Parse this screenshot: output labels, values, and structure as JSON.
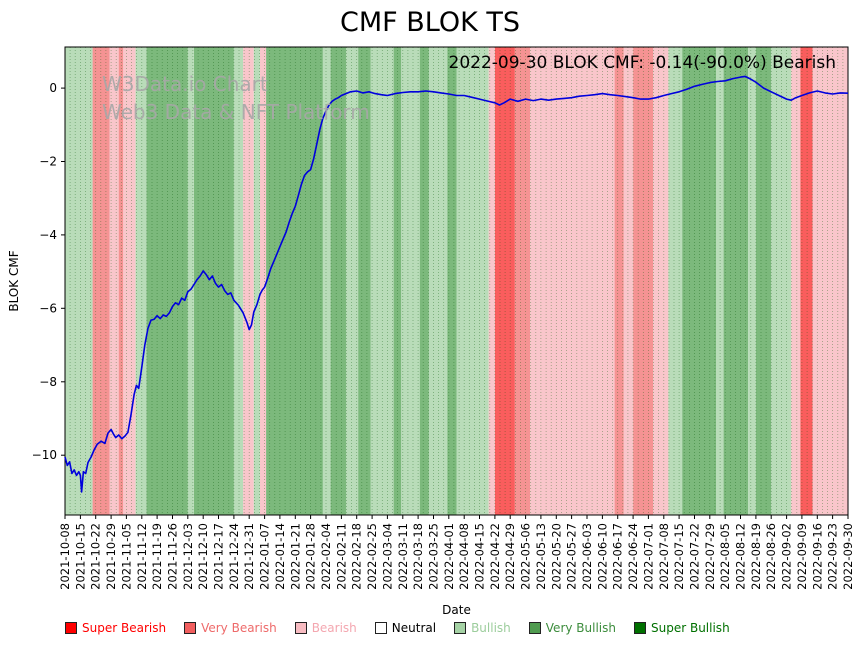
{
  "title": "CMF BLOK TS",
  "watermark": {
    "line1": "W3Data.io Chart",
    "line2": "Web3 Data & NFT Platform"
  },
  "annotation": "2022-09-30 BLOK CMF: -0.14(-90.0%) Bearish",
  "chart_data": {
    "type": "line",
    "title": "CMF BLOK TS",
    "xlabel": "Date",
    "ylabel": "BLOK CMF",
    "ylim": [
      -11.63,
      1.12
    ],
    "y_ticks": [
      0,
      -2,
      -4,
      -6,
      -8,
      -10
    ],
    "grid": "vertical-dotted",
    "legend_position": "bottom",
    "x_tick_labels": [
      "2021-10-08",
      "2021-10-15",
      "2021-10-22",
      "2021-10-29",
      "2021-11-05",
      "2021-11-12",
      "2021-11-19",
      "2021-11-26",
      "2021-12-03",
      "2021-12-10",
      "2021-12-17",
      "2021-12-24",
      "2021-12-31",
      "2022-01-07",
      "2022-01-14",
      "2022-01-21",
      "2022-01-28",
      "2022-02-04",
      "2022-02-11",
      "2022-02-18",
      "2022-02-25",
      "2022-03-04",
      "2022-03-11",
      "2022-03-18",
      "2022-03-25",
      "2022-04-01",
      "2022-04-08",
      "2022-04-15",
      "2022-04-22",
      "2022-04-29",
      "2022-05-06",
      "2022-05-13",
      "2022-05-20",
      "2022-05-27",
      "2022-06-03",
      "2022-06-10",
      "2022-06-17",
      "2022-06-24",
      "2022-07-01",
      "2022-07-08",
      "2022-07-15",
      "2022-07-22",
      "2022-07-29",
      "2022-08-05",
      "2022-08-12",
      "2022-08-19",
      "2022-08-26",
      "2022-09-02",
      "2022-09-09",
      "2022-09-16",
      "2022-09-23",
      "2022-09-30"
    ],
    "series": [
      {
        "name": "BLOK CMF",
        "color": "#0000dd",
        "points": [
          [
            0,
            -10.05
          ],
          [
            0.15,
            -10.28
          ],
          [
            0.3,
            -10.18
          ],
          [
            0.45,
            -10.5
          ],
          [
            0.6,
            -10.4
          ],
          [
            0.75,
            -10.55
          ],
          [
            0.9,
            -10.45
          ],
          [
            1.0,
            -10.55
          ],
          [
            1.08,
            -11.0
          ],
          [
            1.2,
            -10.45
          ],
          [
            1.35,
            -10.5
          ],
          [
            1.5,
            -10.2
          ],
          [
            1.7,
            -10.05
          ],
          [
            1.9,
            -9.85
          ],
          [
            2.1,
            -9.7
          ],
          [
            2.35,
            -9.62
          ],
          [
            2.6,
            -9.68
          ],
          [
            2.8,
            -9.4
          ],
          [
            3.0,
            -9.3
          ],
          [
            3.15,
            -9.42
          ],
          [
            3.3,
            -9.52
          ],
          [
            3.5,
            -9.45
          ],
          [
            3.7,
            -9.55
          ],
          [
            3.9,
            -9.48
          ],
          [
            4.1,
            -9.38
          ],
          [
            4.3,
            -8.9
          ],
          [
            4.5,
            -8.35
          ],
          [
            4.65,
            -8.1
          ],
          [
            4.8,
            -8.18
          ],
          [
            5.0,
            -7.6
          ],
          [
            5.2,
            -7.0
          ],
          [
            5.4,
            -6.55
          ],
          [
            5.6,
            -6.32
          ],
          [
            5.8,
            -6.3
          ],
          [
            6.0,
            -6.2
          ],
          [
            6.2,
            -6.28
          ],
          [
            6.4,
            -6.18
          ],
          [
            6.6,
            -6.22
          ],
          [
            6.8,
            -6.12
          ],
          [
            7.0,
            -5.95
          ],
          [
            7.2,
            -5.85
          ],
          [
            7.4,
            -5.9
          ],
          [
            7.6,
            -5.72
          ],
          [
            7.8,
            -5.78
          ],
          [
            8.0,
            -5.55
          ],
          [
            8.2,
            -5.48
          ],
          [
            8.4,
            -5.35
          ],
          [
            8.6,
            -5.22
          ],
          [
            8.8,
            -5.12
          ],
          [
            9.0,
            -4.98
          ],
          [
            9.2,
            -5.08
          ],
          [
            9.4,
            -5.22
          ],
          [
            9.6,
            -5.12
          ],
          [
            9.8,
            -5.32
          ],
          [
            10.0,
            -5.42
          ],
          [
            10.2,
            -5.35
          ],
          [
            10.4,
            -5.52
          ],
          [
            10.6,
            -5.62
          ],
          [
            10.8,
            -5.58
          ],
          [
            11.0,
            -5.78
          ],
          [
            11.3,
            -5.92
          ],
          [
            11.6,
            -6.12
          ],
          [
            11.85,
            -6.38
          ],
          [
            12.0,
            -6.58
          ],
          [
            12.15,
            -6.45
          ],
          [
            12.3,
            -6.1
          ],
          [
            12.5,
            -5.9
          ],
          [
            12.7,
            -5.62
          ],
          [
            12.85,
            -5.5
          ],
          [
            13.0,
            -5.42
          ],
          [
            13.2,
            -5.18
          ],
          [
            13.4,
            -4.92
          ],
          [
            13.6,
            -4.72
          ],
          [
            13.8,
            -4.52
          ],
          [
            14.0,
            -4.32
          ],
          [
            14.2,
            -4.12
          ],
          [
            14.4,
            -3.92
          ],
          [
            14.6,
            -3.65
          ],
          [
            14.8,
            -3.42
          ],
          [
            15.0,
            -3.22
          ],
          [
            15.2,
            -2.92
          ],
          [
            15.4,
            -2.62
          ],
          [
            15.6,
            -2.38
          ],
          [
            15.8,
            -2.28
          ],
          [
            16.0,
            -2.22
          ],
          [
            16.2,
            -1.92
          ],
          [
            16.4,
            -1.52
          ],
          [
            16.6,
            -1.12
          ],
          [
            16.8,
            -0.82
          ],
          [
            17.0,
            -0.62
          ],
          [
            17.2,
            -0.46
          ],
          [
            17.4,
            -0.36
          ],
          [
            17.6,
            -0.3
          ],
          [
            17.8,
            -0.26
          ],
          [
            18.0,
            -0.2
          ],
          [
            18.3,
            -0.15
          ],
          [
            18.6,
            -0.1
          ],
          [
            19.0,
            -0.08
          ],
          [
            19.4,
            -0.13
          ],
          [
            19.8,
            -0.1
          ],
          [
            20.2,
            -0.15
          ],
          [
            20.6,
            -0.18
          ],
          [
            21.0,
            -0.2
          ],
          [
            21.5,
            -0.15
          ],
          [
            22.0,
            -0.12
          ],
          [
            22.5,
            -0.1
          ],
          [
            23.0,
            -0.1
          ],
          [
            23.5,
            -0.08
          ],
          [
            24.0,
            -0.1
          ],
          [
            24.5,
            -0.13
          ],
          [
            25.0,
            -0.16
          ],
          [
            25.5,
            -0.2
          ],
          [
            26.0,
            -0.2
          ],
          [
            26.5,
            -0.25
          ],
          [
            27.0,
            -0.3
          ],
          [
            27.5,
            -0.35
          ],
          [
            28.0,
            -0.4
          ],
          [
            28.3,
            -0.46
          ],
          [
            28.6,
            -0.4
          ],
          [
            29.0,
            -0.3
          ],
          [
            29.5,
            -0.36
          ],
          [
            30.0,
            -0.3
          ],
          [
            30.5,
            -0.34
          ],
          [
            31.0,
            -0.3
          ],
          [
            31.5,
            -0.33
          ],
          [
            32.0,
            -0.3
          ],
          [
            32.5,
            -0.28
          ],
          [
            33.0,
            -0.26
          ],
          [
            33.5,
            -0.22
          ],
          [
            34.0,
            -0.2
          ],
          [
            34.5,
            -0.18
          ],
          [
            35.0,
            -0.15
          ],
          [
            35.5,
            -0.18
          ],
          [
            36.0,
            -0.2
          ],
          [
            36.5,
            -0.23
          ],
          [
            37.0,
            -0.26
          ],
          [
            37.5,
            -0.3
          ],
          [
            38.0,
            -0.3
          ],
          [
            38.5,
            -0.26
          ],
          [
            39.0,
            -0.2
          ],
          [
            39.5,
            -0.15
          ],
          [
            40.0,
            -0.1
          ],
          [
            40.5,
            -0.03
          ],
          [
            41.0,
            0.05
          ],
          [
            41.5,
            0.1
          ],
          [
            42.0,
            0.15
          ],
          [
            42.5,
            0.18
          ],
          [
            43.0,
            0.2
          ],
          [
            43.5,
            0.26
          ],
          [
            44.0,
            0.3
          ],
          [
            44.3,
            0.32
          ],
          [
            44.6,
            0.26
          ],
          [
            45.0,
            0.16
          ],
          [
            45.5,
            0.0
          ],
          [
            46.0,
            -0.1
          ],
          [
            46.5,
            -0.2
          ],
          [
            47.0,
            -0.3
          ],
          [
            47.3,
            -0.33
          ],
          [
            47.6,
            -0.26
          ],
          [
            48.0,
            -0.2
          ],
          [
            48.5,
            -0.13
          ],
          [
            49.0,
            -0.08
          ],
          [
            49.5,
            -0.13
          ],
          [
            50.0,
            -0.16
          ],
          [
            50.5,
            -0.13
          ],
          [
            51.0,
            -0.14
          ]
        ]
      }
    ],
    "bands": [
      {
        "start": 0,
        "end": 1.8,
        "level": "bullish"
      },
      {
        "start": 1.8,
        "end": 2.9,
        "level": "very_bearish"
      },
      {
        "start": 2.9,
        "end": 3.5,
        "level": "bearish"
      },
      {
        "start": 3.5,
        "end": 3.8,
        "level": "very_bearish"
      },
      {
        "start": 3.8,
        "end": 4.6,
        "level": "bearish"
      },
      {
        "start": 4.6,
        "end": 5.3,
        "level": "bullish"
      },
      {
        "start": 5.3,
        "end": 8.0,
        "level": "very_bullish"
      },
      {
        "start": 8.0,
        "end": 8.4,
        "level": "bullish"
      },
      {
        "start": 8.4,
        "end": 11.0,
        "level": "very_bullish"
      },
      {
        "start": 11.0,
        "end": 11.6,
        "level": "bullish"
      },
      {
        "start": 11.6,
        "end": 12.3,
        "level": "bearish"
      },
      {
        "start": 12.3,
        "end": 12.7,
        "level": "bullish"
      },
      {
        "start": 12.7,
        "end": 13.1,
        "level": "bearish"
      },
      {
        "start": 13.1,
        "end": 16.8,
        "level": "very_bullish"
      },
      {
        "start": 16.8,
        "end": 17.3,
        "level": "bullish"
      },
      {
        "start": 17.3,
        "end": 18.3,
        "level": "very_bullish"
      },
      {
        "start": 18.3,
        "end": 19.1,
        "level": "bullish"
      },
      {
        "start": 19.1,
        "end": 19.9,
        "level": "very_bullish"
      },
      {
        "start": 19.9,
        "end": 21.4,
        "level": "bullish"
      },
      {
        "start": 21.4,
        "end": 21.9,
        "level": "very_bullish"
      },
      {
        "start": 21.9,
        "end": 23.1,
        "level": "bullish"
      },
      {
        "start": 23.1,
        "end": 23.7,
        "level": "very_bullish"
      },
      {
        "start": 23.7,
        "end": 24.9,
        "level": "bullish"
      },
      {
        "start": 24.9,
        "end": 25.5,
        "level": "very_bullish"
      },
      {
        "start": 25.5,
        "end": 27.6,
        "level": "bullish"
      },
      {
        "start": 27.6,
        "end": 28.0,
        "level": "bearish"
      },
      {
        "start": 28.0,
        "end": 29.3,
        "level": "super_bearish"
      },
      {
        "start": 29.3,
        "end": 30.3,
        "level": "very_bearish"
      },
      {
        "start": 30.3,
        "end": 35.8,
        "level": "bearish"
      },
      {
        "start": 35.8,
        "end": 36.4,
        "level": "very_bearish"
      },
      {
        "start": 36.4,
        "end": 37.0,
        "level": "bearish"
      },
      {
        "start": 37.0,
        "end": 38.3,
        "level": "very_bearish"
      },
      {
        "start": 38.3,
        "end": 39.3,
        "level": "bearish"
      },
      {
        "start": 39.3,
        "end": 40.2,
        "level": "bullish"
      },
      {
        "start": 40.2,
        "end": 42.4,
        "level": "very_bullish"
      },
      {
        "start": 42.4,
        "end": 42.9,
        "level": "bullish"
      },
      {
        "start": 42.9,
        "end": 44.5,
        "level": "very_bullish"
      },
      {
        "start": 44.5,
        "end": 45.0,
        "level": "bullish"
      },
      {
        "start": 45.0,
        "end": 46.0,
        "level": "very_bullish"
      },
      {
        "start": 46.0,
        "end": 47.3,
        "level": "bullish"
      },
      {
        "start": 47.3,
        "end": 47.9,
        "level": "bearish"
      },
      {
        "start": 47.9,
        "end": 48.7,
        "level": "super_bearish"
      },
      {
        "start": 48.7,
        "end": 51.0,
        "level": "bearish"
      }
    ],
    "levels": {
      "super_bearish": {
        "label": "Super Bearish",
        "band": "#fa5d5d",
        "swatch": "#ff0000",
        "text": "#ff0000"
      },
      "very_bearish": {
        "label": "Very Bearish",
        "band": "#f59393",
        "swatch": "#f15e5e",
        "text": "#ee6a6a"
      },
      "bearish": {
        "label": "Bearish",
        "band": "#f9c6cb",
        "swatch": "#f8bcc2",
        "text": "#f4a7b0"
      },
      "neutral": {
        "label": "Neutral",
        "band": "#ffffff",
        "swatch": "#ffffff",
        "text": "#000000"
      },
      "bullish": {
        "label": "Bullish",
        "band": "#b9dcb9",
        "swatch": "#a5d2a5",
        "text": "#9ccd9c"
      },
      "very_bullish": {
        "label": "Very Bullish",
        "band": "#7cb97c",
        "swatch": "#4f9b4f",
        "text": "#3c8c3c"
      },
      "super_bullish": {
        "label": "Super Bullish",
        "band": "#0a7d0a",
        "swatch": "#007000",
        "text": "#007000"
      }
    },
    "legend_order": [
      "super_bearish",
      "very_bearish",
      "bearish",
      "neutral",
      "bullish",
      "very_bullish",
      "super_bullish"
    ]
  }
}
